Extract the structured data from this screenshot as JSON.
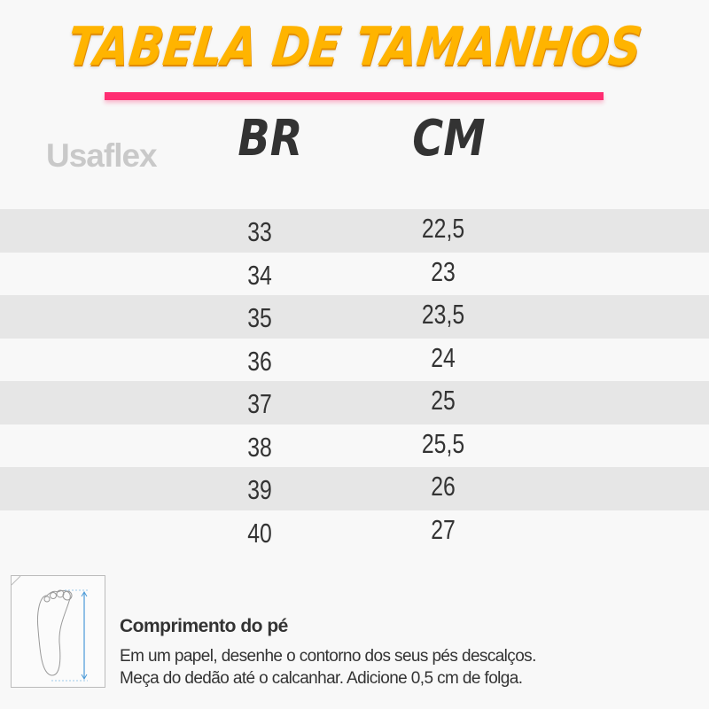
{
  "title": "TABELA DE TAMANHOS",
  "brand": "Usaflex",
  "colors": {
    "title": "#ffb400",
    "underline": "#ff2d72",
    "stripe": "#e6e6e6",
    "arrow": "#4a9ad8"
  },
  "table": {
    "headers": [
      "BR",
      "CM"
    ],
    "rows": [
      {
        "br": "33",
        "cm": "22,5"
      },
      {
        "br": "34",
        "cm": "23"
      },
      {
        "br": "35",
        "cm": "23,5"
      },
      {
        "br": "36",
        "cm": "24"
      },
      {
        "br": "37",
        "cm": "25"
      },
      {
        "br": "38",
        "cm": "25,5"
      },
      {
        "br": "39",
        "cm": "26"
      },
      {
        "br": "40",
        "cm": "27"
      }
    ]
  },
  "info": {
    "icon": "foot-measure-icon",
    "title": "Comprimento do pé",
    "line1": "Em um papel, desenhe o contorno dos seus pés descalços.",
    "line2": "Meça do dedão até o calcanhar. Adicione 0,5 cm de folga."
  }
}
